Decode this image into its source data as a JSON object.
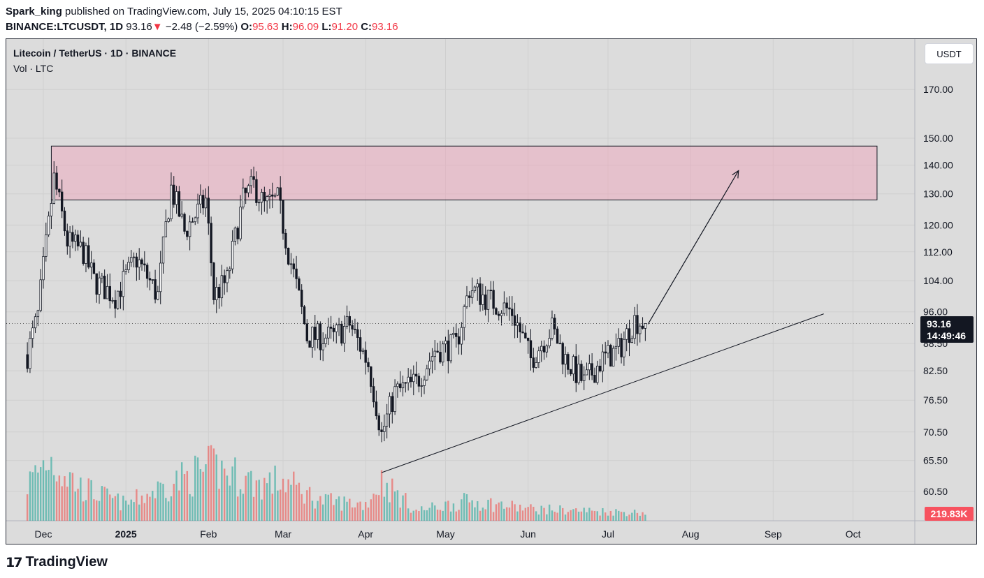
{
  "header": {
    "author": "Spark_king",
    "published": " published on TradingView.com, July 15, 2025 04:10:15 EST",
    "symbol": "BINANCE:LTCUSDT, 1D",
    "last": "93.16",
    "change_arrow": "▼",
    "change": "−2.48 (−2.59%)",
    "o_label": "O:",
    "o": "95.63",
    "h_label": "H:",
    "h": "96.09",
    "l_label": "L:",
    "l": "91.20",
    "c_label": "C:",
    "c": "93.16"
  },
  "legend": {
    "title": "Litecoin / TetherUS · 1D · BINANCE",
    "volume": "Vol · LTC"
  },
  "currency": "USDT",
  "price_label": {
    "price": "93.16",
    "countdown": "14:49:46"
  },
  "volume_label": "219.83K",
  "brand": {
    "logo": "17",
    "name": "TradingView"
  },
  "colors": {
    "up": "#26a69a",
    "down": "#ef5350",
    "candle": "#131722",
    "zone": "#f0a0b8",
    "background": "#dcdcdc"
  },
  "chart_data": {
    "type": "candlestick",
    "title": "Litecoin / TetherUS · 1D · BINANCE",
    "y_scale": "log",
    "y_ticks": [
      "170.00",
      "150.00",
      "140.00",
      "130.00",
      "120.00",
      "112.00",
      "104.00",
      "96.00",
      "88.50",
      "82.50",
      "76.50",
      "70.50",
      "65.50",
      "60.50"
    ],
    "x_ticks": [
      "Dec",
      "2025",
      "Feb",
      "Mar",
      "Apr",
      "May",
      "Jun",
      "Jul",
      "Aug",
      "Sep",
      "Oct"
    ],
    "price_path": [
      [
        "2024-11-25",
        86
      ],
      [
        "2024-11-29",
        95
      ],
      [
        "2024-12-03",
        120
      ],
      [
        "2024-12-05",
        135
      ],
      [
        "2024-12-10",
        115
      ],
      [
        "2024-12-16",
        112
      ],
      [
        "2024-12-20",
        104
      ],
      [
        "2024-12-28",
        100
      ],
      [
        "2025-01-05",
        110
      ],
      [
        "2025-01-13",
        100
      ],
      [
        "2025-01-18",
        132
      ],
      [
        "2025-01-23",
        118
      ],
      [
        "2025-01-31",
        128
      ],
      [
        "2025-02-03",
        100
      ],
      [
        "2025-02-08",
        104
      ],
      [
        "2025-02-14",
        128
      ],
      [
        "2025-02-18",
        133
      ],
      [
        "2025-02-22",
        126
      ],
      [
        "2025-02-27",
        128
      ],
      [
        "2025-03-03",
        112
      ],
      [
        "2025-03-10",
        90
      ],
      [
        "2025-03-20",
        90
      ],
      [
        "2025-03-26",
        93
      ],
      [
        "2025-04-02",
        84
      ],
      [
        "2025-04-07",
        70
      ],
      [
        "2025-04-12",
        78
      ],
      [
        "2025-04-20",
        80
      ],
      [
        "2025-04-27",
        87
      ],
      [
        "2025-05-05",
        88
      ],
      [
        "2025-05-10",
        102
      ],
      [
        "2025-05-20",
        98
      ],
      [
        "2025-05-26",
        96
      ],
      [
        "2025-06-02",
        85
      ],
      [
        "2025-06-10",
        92
      ],
      [
        "2025-06-15",
        85
      ],
      [
        "2025-06-22",
        80
      ],
      [
        "2025-06-29",
        85
      ],
      [
        "2025-07-05",
        87
      ],
      [
        "2025-07-11",
        94
      ],
      [
        "2025-07-15",
        93.16
      ]
    ],
    "volume_profile": [
      [
        "2024-11-25",
        55
      ],
      [
        "2024-12-03",
        95
      ],
      [
        "2024-12-15",
        50
      ],
      [
        "2025-01-01",
        25
      ],
      [
        "2025-01-20",
        60
      ],
      [
        "2025-02-03",
        80
      ],
      [
        "2025-02-20",
        55
      ],
      [
        "2025-03-01",
        60
      ],
      [
        "2025-03-15",
        30
      ],
      [
        "2025-04-01",
        25
      ],
      [
        "2025-04-07",
        60
      ],
      [
        "2025-04-20",
        15
      ],
      [
        "2025-05-10",
        30
      ],
      [
        "2025-06-01",
        18
      ],
      [
        "2025-07-15",
        12
      ]
    ],
    "resistance_zone": {
      "low": 128,
      "high": 147,
      "start": "2024-12-04",
      "end": "2025-10-10"
    },
    "trendline": {
      "start": [
        "2025-04-07",
        63.5
      ],
      "end": [
        "2025-09-20",
        95.5
      ]
    },
    "arrow": {
      "start": [
        "2025-07-16",
        93
      ],
      "end": [
        "2025-08-19",
        138
      ]
    },
    "last_price": 93.16,
    "grid": true
  }
}
